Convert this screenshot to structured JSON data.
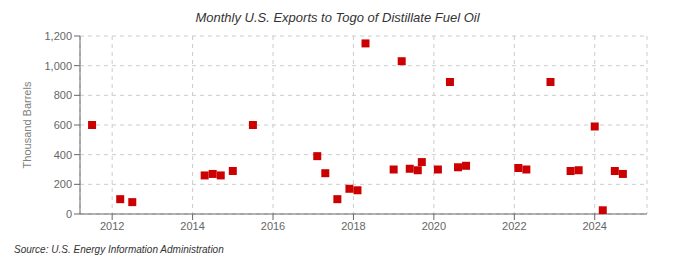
{
  "chart_data": {
    "type": "scatter",
    "title": "Monthly U.S. Exports to Togo of Distillate Fuel Oil",
    "ylabel": "Thousand Barrels",
    "annotations": [
      "Source: U.S. Energy Information Administration"
    ],
    "color": "#cc0000",
    "marker": "square",
    "grid": true,
    "xlim": [
      2011.2,
      2025.3
    ],
    "xticks": [
      2012,
      2014,
      2016,
      2018,
      2020,
      2022,
      2024
    ],
    "ylim": [
      0,
      1200
    ],
    "yticks": [
      0,
      200,
      400,
      600,
      800,
      {
        "value": 1000,
        "label": "1,000"
      },
      {
        "value": 1200,
        "label": "1,200"
      }
    ],
    "x": [
      2011.5,
      2012.2,
      2012.5,
      2014.3,
      2014.5,
      2014.7,
      2015.0,
      2015.5,
      2017.1,
      2017.3,
      2017.6,
      2017.9,
      2018.1,
      2018.3,
      2019.0,
      2019.2,
      2019.4,
      2019.6,
      2019.7,
      2020.1,
      2020.4,
      2020.6,
      2020.8,
      2022.1,
      2022.3,
      2022.9,
      2023.4,
      2023.6,
      2024.0,
      2024.2,
      2024.5,
      2024.7
    ],
    "values": [
      600,
      100,
      80,
      260,
      270,
      260,
      290,
      600,
      390,
      275,
      100,
      170,
      160,
      1150,
      300,
      1030,
      305,
      295,
      350,
      300,
      890,
      315,
      325,
      310,
      300,
      890,
      290,
      295,
      590,
      25,
      290,
      270
    ]
  }
}
